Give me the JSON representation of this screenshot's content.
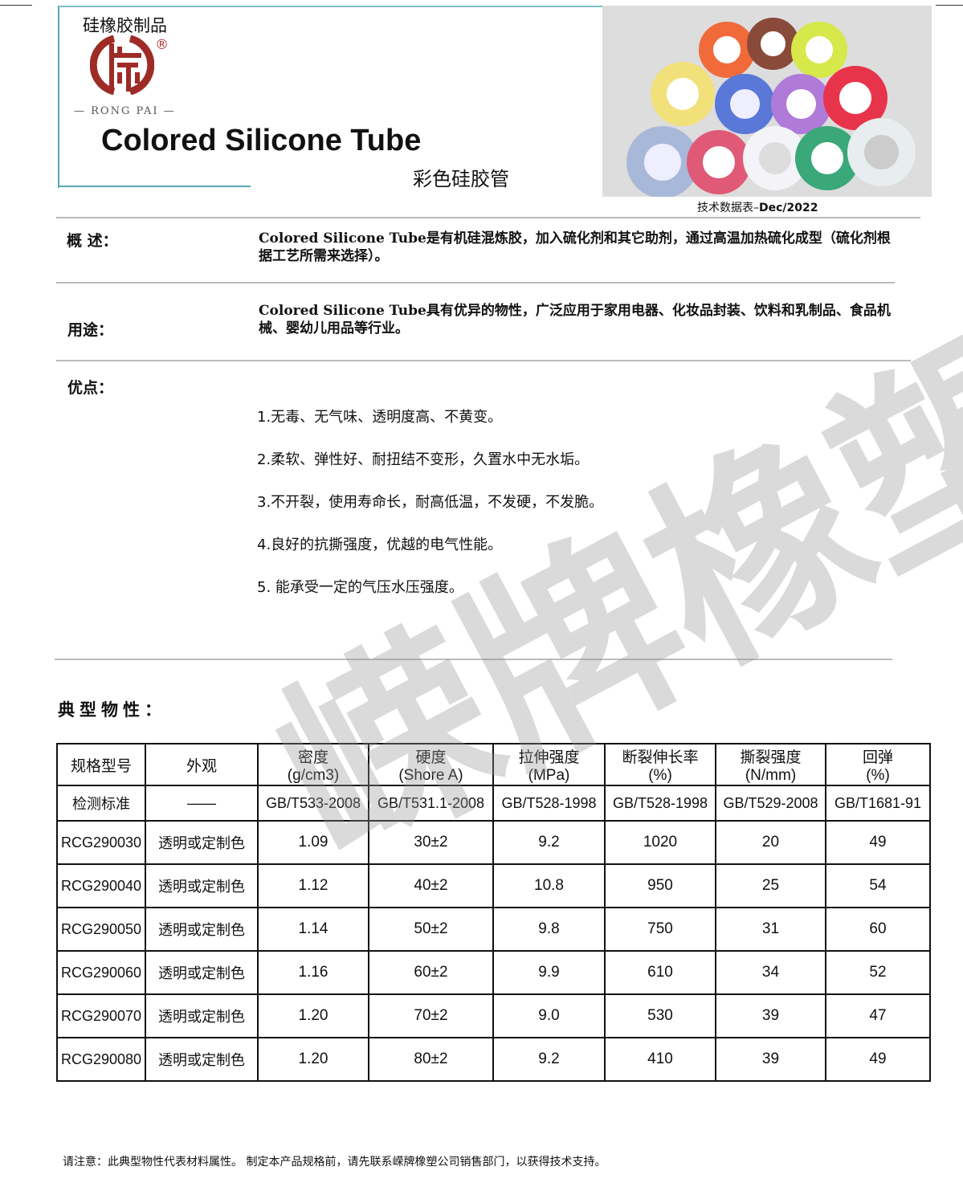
{
  "header": {
    "brand": "硅橡胶制品",
    "logo_text": "RONG PAI",
    "title": "Colored Silicone Tube",
    "subtitle": "彩色硅胶管",
    "datasheet_label": "技术数据表–",
    "datasheet_date": "Dec/2022"
  },
  "overview": {
    "label": "概 述：",
    "text": "Colored Silicone Tube是有机硅混炼胶，加入硫化剂和其它助剂，通过高温加热硫化成型（硫化剂根据工艺所需来选择）。"
  },
  "usage": {
    "label": "用途：",
    "text": "Colored Silicone Tube具有优异的物性，广泛应用于家用电器、化妆品封装、饮料和乳制品、食品机械、婴幼儿用品等行业。"
  },
  "advantages": {
    "label": "优点：",
    "items": [
      "1.无毒、无气味、透明度高、不黄变。",
      "2.柔软、弹性好、耐扭结不变形，久置水中无水垢。",
      "3.不开裂，使用寿命长，耐高低温，不发硬，不发脆。",
      "4.良好的抗撕强度，优越的电气性能。",
      "5. 能承受一定的气压水压强度。"
    ]
  },
  "watermark": "嵘牌橡塑",
  "properties": {
    "label": "典型物性：",
    "headers": [
      [
        "规格型号",
        ""
      ],
      [
        "外观",
        ""
      ],
      [
        "密度",
        "(g/cm3)"
      ],
      [
        "硬度",
        "(Shore A)"
      ],
      [
        "拉伸强度",
        "(MPa)"
      ],
      [
        "断裂伸长率",
        "(%)"
      ],
      [
        "撕裂强度",
        "(N/mm)"
      ],
      [
        "回弹",
        "(%)"
      ]
    ],
    "standards": [
      "检测标准",
      "——",
      "GB/T533-2008",
      "GB/T531.1-2008",
      "GB/T528-1998",
      "GB/T528-1998",
      "GB/T529-2008",
      "GB/T1681-91"
    ],
    "rows": [
      [
        "RCG290030",
        "透明或定制色",
        "1.09",
        "30±2",
        "9.2",
        "1020",
        "20",
        "49"
      ],
      [
        "RCG290040",
        "透明或定制色",
        "1.12",
        "40±2",
        "10.8",
        "950",
        "25",
        "54"
      ],
      [
        "RCG290050",
        "透明或定制色",
        "1.14",
        "50±2",
        "9.8",
        "750",
        "31",
        "60"
      ],
      [
        "RCG290060",
        "透明或定制色",
        "1.16",
        "60±2",
        "9.9",
        "610",
        "34",
        "52"
      ],
      [
        "RCG290070",
        "透明或定制色",
        "1.20",
        "70±2",
        "9.0",
        "530",
        "39",
        "47"
      ],
      [
        "RCG290080",
        "透明或定制色",
        "1.20",
        "80±2",
        "9.2",
        "410",
        "39",
        "49"
      ]
    ]
  },
  "footer_note": "请注意：此典型物性代表材料属性。 制定本产品规格前，请先联系嵘牌橡塑公司销售部门，以获得技术支持。",
  "colors": {
    "logo": "#9e2b25",
    "accent_line": "#5aa9b0"
  }
}
